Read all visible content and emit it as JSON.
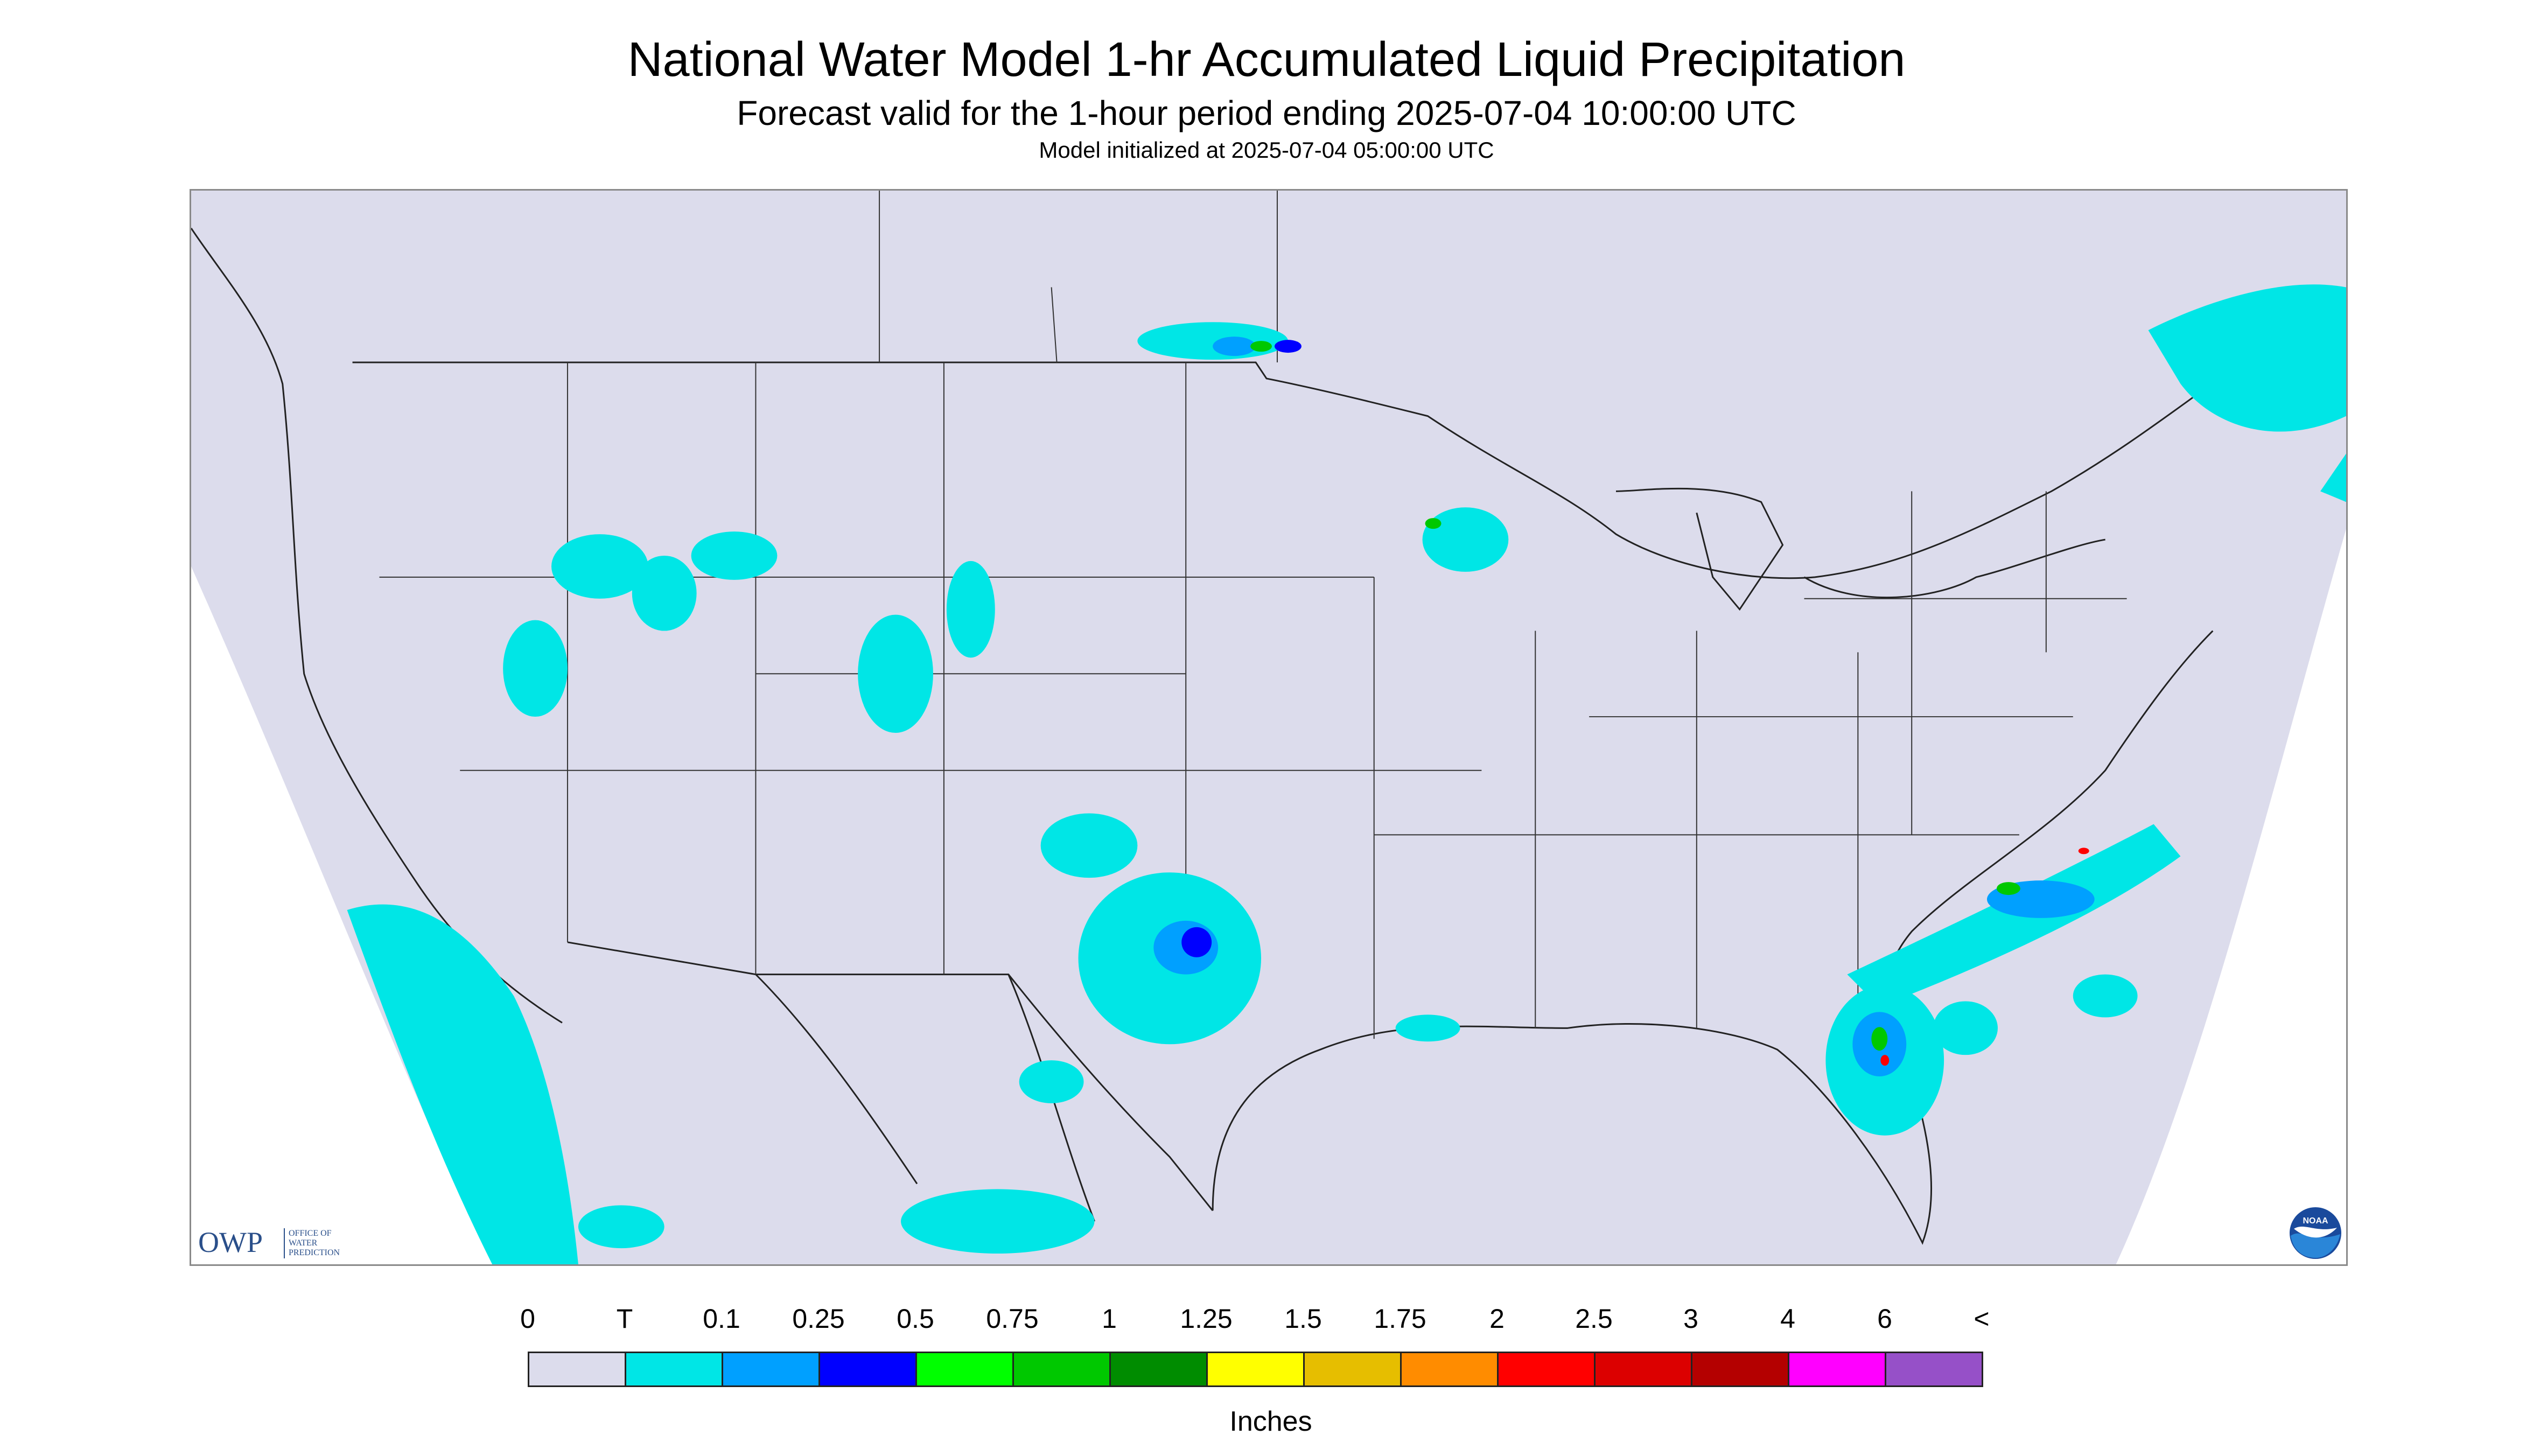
{
  "header": {
    "title": "National Water Model 1-hr Accumulated Liquid Precipitation",
    "subtitle": "Forecast valid for the 1-hour period ending 2025-07-04 10:00:00 UTC",
    "init_line": "Model initialized at 2025-07-04 05:00:00 UTC"
  },
  "logos": {
    "owp_text": "OWP",
    "owp_sub": [
      "OFFICE OF",
      "WATER",
      "PREDICTION"
    ],
    "noaa_text": "NOAA"
  },
  "map": {
    "background_color": "#dcdcec",
    "outside_color": "#ffffff",
    "boundary_color": "#222222",
    "precip_regions": [
      {
        "area": "Pacific coast offshore",
        "max_category": "T"
      },
      {
        "area": "Idaho / Montana / Wyoming",
        "max_category": "T"
      },
      {
        "area": "Northern Minnesota / Ontario border",
        "max_category": "0.5"
      },
      {
        "area": "Northern Wisconsin / Upper Michigan",
        "max_category": "0.75"
      },
      {
        "area": "Colorado / New Mexico / Texas Panhandle",
        "max_category": "T"
      },
      {
        "area": "Central Texas / Oklahoma",
        "max_category": "0.5"
      },
      {
        "area": "Northern Mexico / Gulf coast",
        "max_category": "0.25"
      },
      {
        "area": "Atlantic off the Carolinas",
        "max_category": "3"
      },
      {
        "area": "Atlantic off Georgia / Florida",
        "max_category": "3"
      },
      {
        "area": "Northern New England / Quebec",
        "max_category": "0.25"
      }
    ]
  },
  "legend": {
    "unit_label": "Inches",
    "tick_labels": [
      "0",
      "T",
      "0.1",
      "0.25",
      "0.5",
      "0.75",
      "1",
      "1.25",
      "1.5",
      "1.75",
      "2",
      "2.5",
      "3",
      "4",
      "6",
      "<"
    ],
    "colors": [
      "#dcdcec",
      "#00e6e6",
      "#00a0ff",
      "#0000ff",
      "#00ff00",
      "#00c800",
      "#008c00",
      "#ffff00",
      "#e6be00",
      "#ff8c00",
      "#ff0000",
      "#dc0000",
      "#b40000",
      "#ff00ff",
      "#9650c8"
    ]
  }
}
